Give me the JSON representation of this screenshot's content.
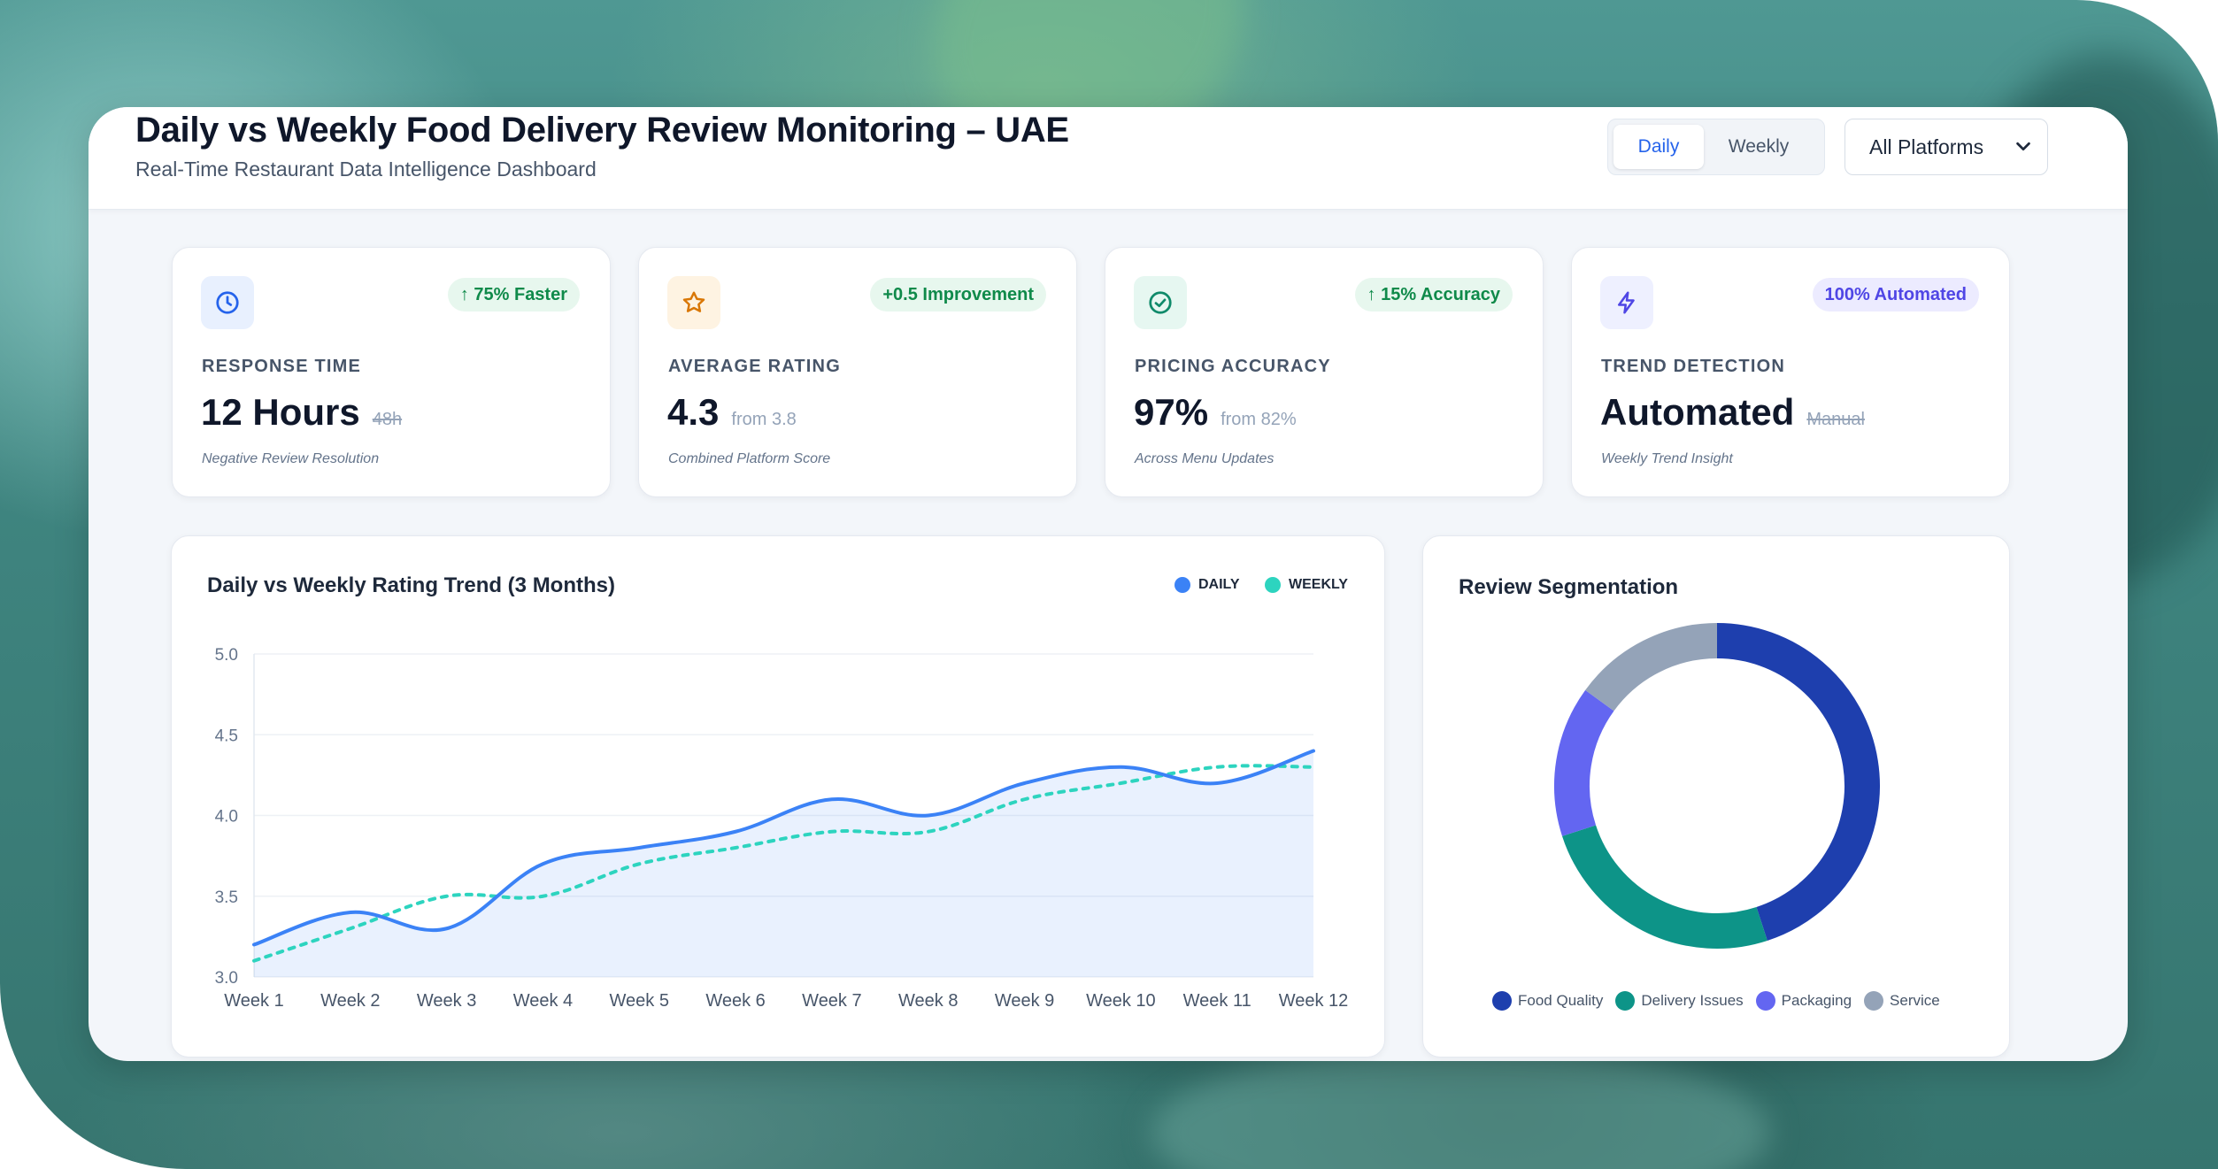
{
  "header": {
    "title": "Daily vs Weekly Food Delivery Review Monitoring – UAE",
    "subtitle": "Real-Time Restaurant Data Intelligence Dashboard",
    "toggle": {
      "daily_label": "Daily",
      "weekly_label": "Weekly",
      "active": "Daily"
    },
    "platform_select": {
      "value": "All Platforms"
    }
  },
  "stats": [
    {
      "icon": "clock-icon",
      "badge": "↑ 75% Faster",
      "label": "RESPONSE TIME",
      "value": "12 Hours",
      "previous": "48h",
      "note": "Negative Review Resolution"
    },
    {
      "icon": "star-icon",
      "badge": "+0.5 Improvement",
      "label": "AVERAGE RATING",
      "value": "4.3",
      "previous": "from 3.8",
      "note": "Combined Platform Score"
    },
    {
      "icon": "check-circle-icon",
      "badge": "↑ 15% Accuracy",
      "label": "PRICING ACCURACY",
      "value": "97%",
      "previous": "from 82%",
      "note": "Across Menu Updates"
    },
    {
      "icon": "lightning-icon",
      "badge": "100% Automated",
      "label": "TREND DETECTION",
      "value": "Automated",
      "previous": "Manual",
      "note": "Weekly Trend Insight"
    }
  ],
  "colors": {
    "daily": "#3b82f6",
    "weekly": "#2dd4bf",
    "food_quality": "#1e3fae",
    "delivery_issues": "#0d9488",
    "packaging": "#6366f1",
    "service": "#94a3b8"
  },
  "chart_data": [
    {
      "type": "line",
      "title": "Daily vs Weekly Rating Trend (3 Months)",
      "legend_position": "top-right",
      "categories": [
        "Week 1",
        "Week 2",
        "Week 3",
        "Week 4",
        "Week 5",
        "Week 6",
        "Week 7",
        "Week 8",
        "Week 9",
        "Week 10",
        "Week 11",
        "Week 12"
      ],
      "series": [
        {
          "name": "DAILY",
          "style": "solid, filled area",
          "values": [
            3.2,
            3.4,
            3.3,
            3.7,
            3.8,
            3.9,
            4.1,
            4.0,
            4.2,
            4.3,
            4.2,
            4.4
          ]
        },
        {
          "name": "WEEKLY",
          "style": "dashed",
          "values": [
            3.1,
            3.3,
            3.5,
            3.5,
            3.7,
            3.8,
            3.9,
            3.9,
            4.1,
            4.2,
            4.3,
            4.3
          ]
        }
      ],
      "yticks": [
        "3.0",
        "3.5",
        "4.0",
        "4.5",
        "5.0"
      ],
      "ylim": [
        3.0,
        5.0
      ],
      "grid": true
    },
    {
      "type": "pie",
      "title": "Review Segmentation",
      "donut": true,
      "labels": [
        "Food Quality",
        "Delivery Issues",
        "Packaging",
        "Service"
      ],
      "values": [
        45,
        25,
        15,
        15
      ]
    }
  ]
}
